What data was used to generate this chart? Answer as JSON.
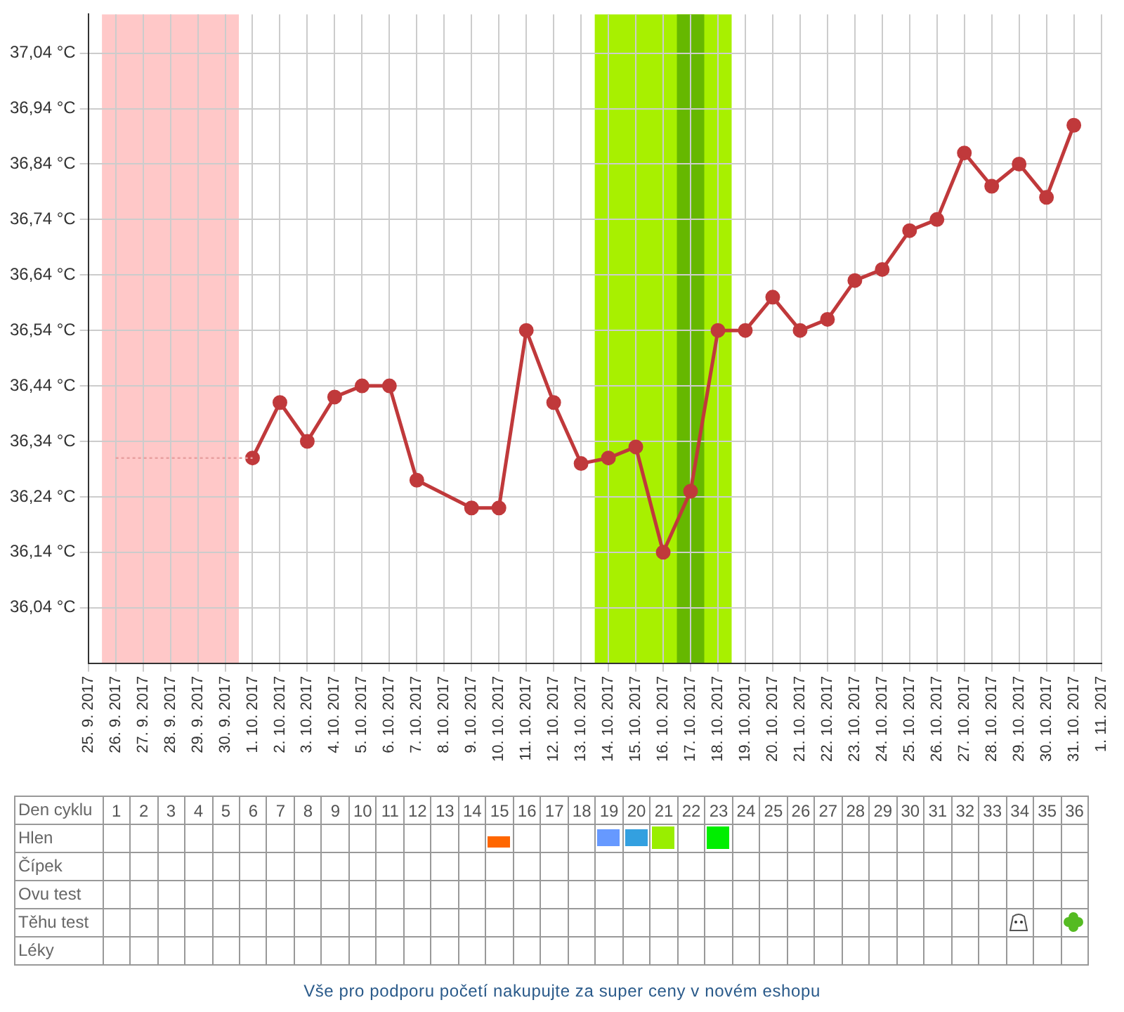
{
  "chart_data": {
    "type": "line",
    "x": [
      "2017-09-26",
      "2017-09-27",
      "2017-09-28",
      "2017-09-29",
      "2017-09-30",
      "2017-10-01",
      "2017-10-02",
      "2017-10-03",
      "2017-10-04",
      "2017-10-05",
      "2017-10-06",
      "2017-10-07",
      "2017-10-08",
      "2017-10-09",
      "2017-10-10",
      "2017-10-11",
      "2017-10-12",
      "2017-10-13",
      "2017-10-14",
      "2017-10-15",
      "2017-10-16",
      "2017-10-17",
      "2017-10-18",
      "2017-10-19",
      "2017-10-20",
      "2017-10-21",
      "2017-10-22",
      "2017-10-23",
      "2017-10-24",
      "2017-10-25",
      "2017-10-26",
      "2017-10-27",
      "2017-10-28",
      "2017-10-29",
      "2017-10-30",
      "2017-10-31"
    ],
    "series": [
      {
        "color": "#e8a0a0",
        "line_style": "dotted",
        "marker": "none",
        "values": [
          36.31,
          36.31,
          36.31,
          36.31,
          36.31,
          36.31,
          null,
          null,
          null,
          null,
          null,
          null,
          null,
          null,
          null,
          null,
          null,
          null,
          null,
          null,
          null,
          null,
          null,
          null,
          null,
          null,
          null,
          null,
          null,
          null,
          null,
          null,
          null,
          null,
          null,
          null
        ]
      },
      {
        "color": "#c0393b",
        "line_style": "solid",
        "marker": "circle",
        "values": [
          null,
          null,
          null,
          null,
          null,
          36.31,
          36.41,
          36.34,
          36.42,
          36.44,
          36.44,
          36.27,
          null,
          36.22,
          36.22,
          36.54,
          36.41,
          36.3,
          36.31,
          36.33,
          36.14,
          36.25,
          36.54,
          36.54,
          36.6,
          36.54,
          36.56,
          36.63,
          36.65,
          36.72,
          36.74,
          36.86,
          36.8,
          36.84,
          36.78,
          36.91
        ]
      }
    ],
    "xlim": [
      "2017-09-25",
      "2017-11-01"
    ],
    "xticks": [
      {
        "value": "2017-09-25",
        "label": "25. 9. 2017"
      },
      {
        "value": "2017-09-26",
        "label": "26. 9. 2017"
      },
      {
        "value": "2017-09-27",
        "label": "27. 9. 2017"
      },
      {
        "value": "2017-09-28",
        "label": "28. 9. 2017"
      },
      {
        "value": "2017-09-29",
        "label": "29. 9. 2017"
      },
      {
        "value": "2017-09-30",
        "label": "30. 9. 2017"
      },
      {
        "value": "2017-10-01",
        "label": "1. 10. 2017"
      },
      {
        "value": "2017-10-02",
        "label": "2. 10. 2017"
      },
      {
        "value": "2017-10-03",
        "label": "3. 10. 2017"
      },
      {
        "value": "2017-10-04",
        "label": "4. 10. 2017"
      },
      {
        "value": "2017-10-05",
        "label": "5. 10. 2017"
      },
      {
        "value": "2017-10-06",
        "label": "6. 10. 2017"
      },
      {
        "value": "2017-10-07",
        "label": "7. 10. 2017"
      },
      {
        "value": "2017-10-08",
        "label": "8. 10. 2017"
      },
      {
        "value": "2017-10-09",
        "label": "9. 10. 2017"
      },
      {
        "value": "2017-10-10",
        "label": "10. 10. 2017"
      },
      {
        "value": "2017-10-11",
        "label": "11. 10. 2017"
      },
      {
        "value": "2017-10-12",
        "label": "12. 10. 2017"
      },
      {
        "value": "2017-10-13",
        "label": "13. 10. 2017"
      },
      {
        "value": "2017-10-14",
        "label": "14. 10. 2017"
      },
      {
        "value": "2017-10-15",
        "label": "15. 10. 2017"
      },
      {
        "value": "2017-10-16",
        "label": "16. 10. 2017"
      },
      {
        "value": "2017-10-17",
        "label": "17. 10. 2017"
      },
      {
        "value": "2017-10-18",
        "label": "18. 10. 2017"
      },
      {
        "value": "2017-10-19",
        "label": "19. 10. 2017"
      },
      {
        "value": "2017-10-20",
        "label": "20. 10. 2017"
      },
      {
        "value": "2017-10-21",
        "label": "21. 10. 2017"
      },
      {
        "value": "2017-10-22",
        "label": "22. 10. 2017"
      },
      {
        "value": "2017-10-23",
        "label": "23. 10. 2017"
      },
      {
        "value": "2017-10-24",
        "label": "24. 10. 2017"
      },
      {
        "value": "2017-10-25",
        "label": "25. 10. 2017"
      },
      {
        "value": "2017-10-26",
        "label": "26. 10. 2017"
      },
      {
        "value": "2017-10-27",
        "label": "27. 10. 2017"
      },
      {
        "value": "2017-10-28",
        "label": "28. 10. 2017"
      },
      {
        "value": "2017-10-29",
        "label": "29. 10. 2017"
      },
      {
        "value": "2017-10-30",
        "label": "30. 10. 2017"
      },
      {
        "value": "2017-10-31",
        "label": "31. 10. 2017"
      },
      {
        "value": "2017-11-01",
        "label": "1. 11. 2017"
      }
    ],
    "x2label": "Den cyklu",
    "x2lim": [
      "2017-09-25",
      "2017-11-01"
    ],
    "x2ticks": [
      {
        "value": "2017-09-26",
        "label": "1"
      },
      {
        "value": "2017-09-27",
        "label": "2"
      },
      {
        "value": "2017-09-28",
        "label": "3"
      },
      {
        "value": "2017-09-29",
        "label": "4"
      },
      {
        "value": "2017-09-30",
        "label": "5"
      },
      {
        "value": "2017-10-01",
        "label": "6"
      },
      {
        "value": "2017-10-02",
        "label": "7"
      },
      {
        "value": "2017-10-03",
        "label": "8"
      },
      {
        "value": "2017-10-04",
        "label": "9"
      },
      {
        "value": "2017-10-05",
        "label": "10"
      },
      {
        "value": "2017-10-06",
        "label": "11"
      },
      {
        "value": "2017-10-07",
        "label": "12"
      },
      {
        "value": "2017-10-08",
        "label": "13"
      },
      {
        "value": "2017-10-09",
        "label": "14"
      },
      {
        "value": "2017-10-10",
        "label": "15"
      },
      {
        "value": "2017-10-11",
        "label": "16"
      },
      {
        "value": "2017-10-12",
        "label": "17"
      },
      {
        "value": "2017-10-13",
        "label": "18"
      },
      {
        "value": "2017-10-14",
        "label": "19"
      },
      {
        "value": "2017-10-15",
        "label": "20"
      },
      {
        "value": "2017-10-16",
        "label": "21"
      },
      {
        "value": "2017-10-17",
        "label": "22"
      },
      {
        "value": "2017-10-18",
        "label": "23"
      },
      {
        "value": "2017-10-19",
        "label": "24"
      },
      {
        "value": "2017-10-20",
        "label": "25"
      },
      {
        "value": "2017-10-21",
        "label": "26"
      },
      {
        "value": "2017-10-22",
        "label": "27"
      },
      {
        "value": "2017-10-23",
        "label": "28"
      },
      {
        "value": "2017-10-24",
        "label": "29"
      },
      {
        "value": "2017-10-25",
        "label": "30"
      },
      {
        "value": "2017-10-26",
        "label": "31"
      },
      {
        "value": "2017-10-27",
        "label": "32"
      },
      {
        "value": "2017-10-28",
        "label": "33"
      },
      {
        "value": "2017-10-29",
        "label": "34"
      },
      {
        "value": "2017-10-30",
        "label": "35"
      },
      {
        "value": "2017-10-31",
        "label": "36"
      }
    ],
    "ylim": [
      35.94,
      37.11
    ],
    "yticks": [
      {
        "value": 36.04,
        "label": "36,04 °C"
      },
      {
        "value": 36.14,
        "label": "36,14 °C"
      },
      {
        "value": 36.24,
        "label": "36,24 °C"
      },
      {
        "value": 36.34,
        "label": "36,34 °C"
      },
      {
        "value": 36.44,
        "label": "36,44 °C"
      },
      {
        "value": 36.54,
        "label": "36,54 °C"
      },
      {
        "value": 36.64,
        "label": "36,64 °C"
      },
      {
        "value": 36.74,
        "label": "36,74 °C"
      },
      {
        "value": 36.84,
        "label": "36,84 °C"
      },
      {
        "value": 36.94,
        "label": "36,94 °C"
      },
      {
        "value": 37.04,
        "label": "37,04 °C"
      }
    ],
    "bands": [
      {
        "axis": "x",
        "from": "2017-09-25T12:00",
        "to": "2017-09-30T12:00",
        "color": "#ffc8c8"
      },
      {
        "axis": "x",
        "from": "2017-10-13T12:00",
        "to": "2017-10-18T12:00",
        "color": "#a8f000"
      },
      {
        "axis": "x",
        "from": "2017-10-16T12:00",
        "to": "2017-10-17T12:00",
        "color": "#66b800"
      }
    ],
    "annotations": [
      "Hlen",
      "Čípek",
      "Ovu test",
      "Těhu test",
      "Léky",
      "Vše pro podporu početí nakupujte za super ceny v novém eshopu"
    ],
    "grid": true,
    "legend": false
  }
}
